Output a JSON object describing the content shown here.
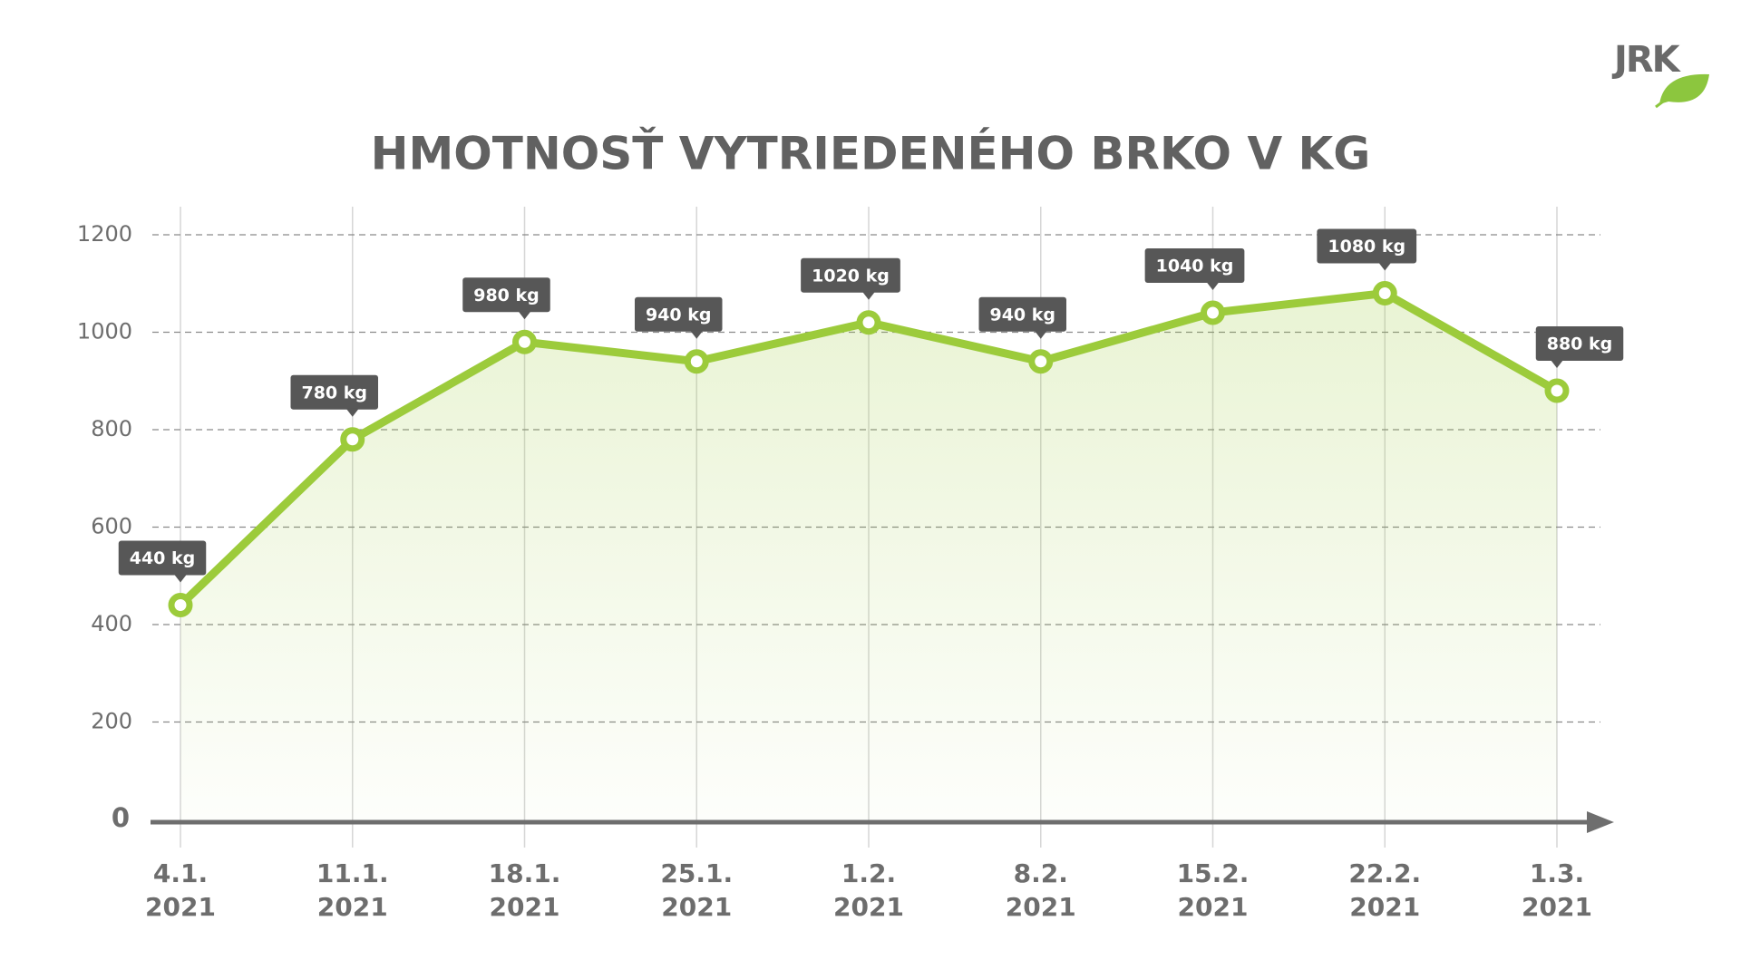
{
  "chart_data": {
    "type": "line",
    "title": "HMOTNOSŤ VYTRIEDENÉHO BRKO V KG",
    "logo": "JRK",
    "categories": [
      "4.1. 2021",
      "11.1. 2021",
      "18.1. 2021",
      "25.1. 2021",
      "1.2. 2021",
      "8.2. 2021",
      "15.2. 2021",
      "22.2. 2021",
      "1.3. 2021"
    ],
    "values": [
      440,
      780,
      980,
      940,
      1020,
      940,
      1040,
      1080,
      880
    ],
    "value_labels": [
      "440 kg",
      "780 kg",
      "980 kg",
      "940 kg",
      "1020 kg",
      "940 kg",
      "1040 kg",
      "1080 kg",
      "880 kg"
    ],
    "color": "#9ccb3b",
    "ylim": [
      0,
      1200
    ],
    "yticks": [
      0,
      200,
      400,
      600,
      800,
      1000,
      1200
    ],
    "grid": true
  }
}
